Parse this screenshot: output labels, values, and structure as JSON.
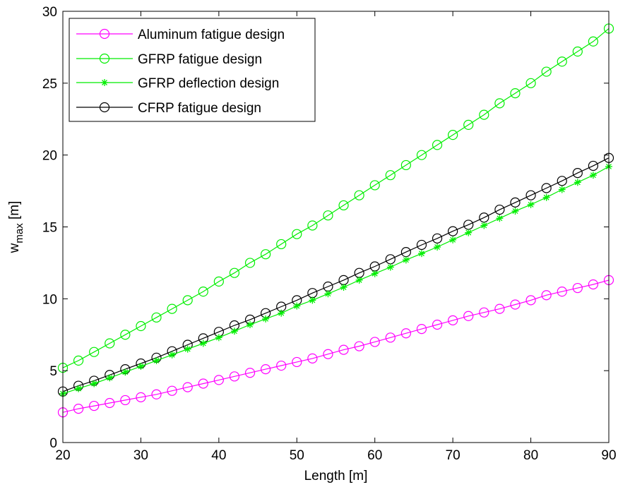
{
  "chart_data": {
    "type": "line",
    "xlabel": "Length [m]",
    "ylabel_main": "w",
    "ylabel_sub": "max",
    "ylabel_unit": " [m]",
    "xlim": [
      20,
      90
    ],
    "ylim": [
      0,
      30
    ],
    "xticks": [
      20,
      30,
      40,
      50,
      60,
      70,
      80,
      90
    ],
    "yticks": [
      0,
      5,
      10,
      15,
      20,
      25,
      30
    ],
    "grid": false,
    "legend_position": "top-left",
    "x": [
      20,
      22,
      24,
      26,
      28,
      30,
      32,
      34,
      36,
      38,
      40,
      42,
      44,
      46,
      48,
      50,
      52,
      54,
      56,
      58,
      60,
      62,
      64,
      66,
      68,
      70,
      72,
      74,
      76,
      78,
      80,
      82,
      84,
      86,
      88,
      90
    ],
    "series": [
      {
        "name": "Aluminum fatigue design",
        "color": "#ff00ff",
        "marker": "circle",
        "values": [
          2.1,
          2.35,
          2.55,
          2.75,
          2.95,
          3.15,
          3.35,
          3.6,
          3.85,
          4.1,
          4.35,
          4.6,
          4.85,
          5.1,
          5.35,
          5.6,
          5.85,
          6.15,
          6.45,
          6.7,
          7.0,
          7.3,
          7.6,
          7.9,
          8.2,
          8.5,
          8.8,
          9.05,
          9.3,
          9.6,
          9.9,
          10.25,
          10.5,
          10.75,
          11.0,
          11.3
        ]
      },
      {
        "name": "GFRP fatigue design",
        "color": "#00ee00",
        "marker": "circle",
        "values": [
          5.2,
          5.7,
          6.3,
          6.9,
          7.5,
          8.1,
          8.7,
          9.3,
          9.9,
          10.5,
          11.2,
          11.8,
          12.5,
          13.1,
          13.8,
          14.5,
          15.1,
          15.8,
          16.5,
          17.2,
          17.9,
          18.6,
          19.3,
          20.0,
          20.7,
          21.4,
          22.1,
          22.8,
          23.6,
          24.3,
          25.0,
          25.8,
          26.5,
          27.2,
          27.9,
          28.8
        ]
      },
      {
        "name": "GFRP deflection design",
        "color": "#00ee00",
        "marker": "star",
        "values": [
          3.4,
          3.75,
          4.1,
          4.5,
          4.9,
          5.3,
          5.7,
          6.1,
          6.5,
          6.9,
          7.3,
          7.75,
          8.2,
          8.6,
          9.0,
          9.5,
          9.9,
          10.35,
          10.8,
          11.3,
          11.75,
          12.2,
          12.7,
          13.15,
          13.6,
          14.1,
          14.6,
          15.1,
          15.6,
          16.1,
          16.55,
          17.05,
          17.6,
          18.1,
          18.6,
          19.2
        ]
      },
      {
        "name": "CFRP fatigue design",
        "color": "#000000",
        "marker": "circle",
        "values": [
          3.55,
          3.95,
          4.3,
          4.7,
          5.1,
          5.5,
          5.9,
          6.35,
          6.8,
          7.25,
          7.7,
          8.15,
          8.55,
          9.0,
          9.45,
          9.9,
          10.4,
          10.85,
          11.3,
          11.8,
          12.25,
          12.75,
          13.25,
          13.75,
          14.2,
          14.7,
          15.15,
          15.65,
          16.2,
          16.7,
          17.2,
          17.7,
          18.2,
          18.75,
          19.25,
          19.8
        ]
      }
    ]
  }
}
